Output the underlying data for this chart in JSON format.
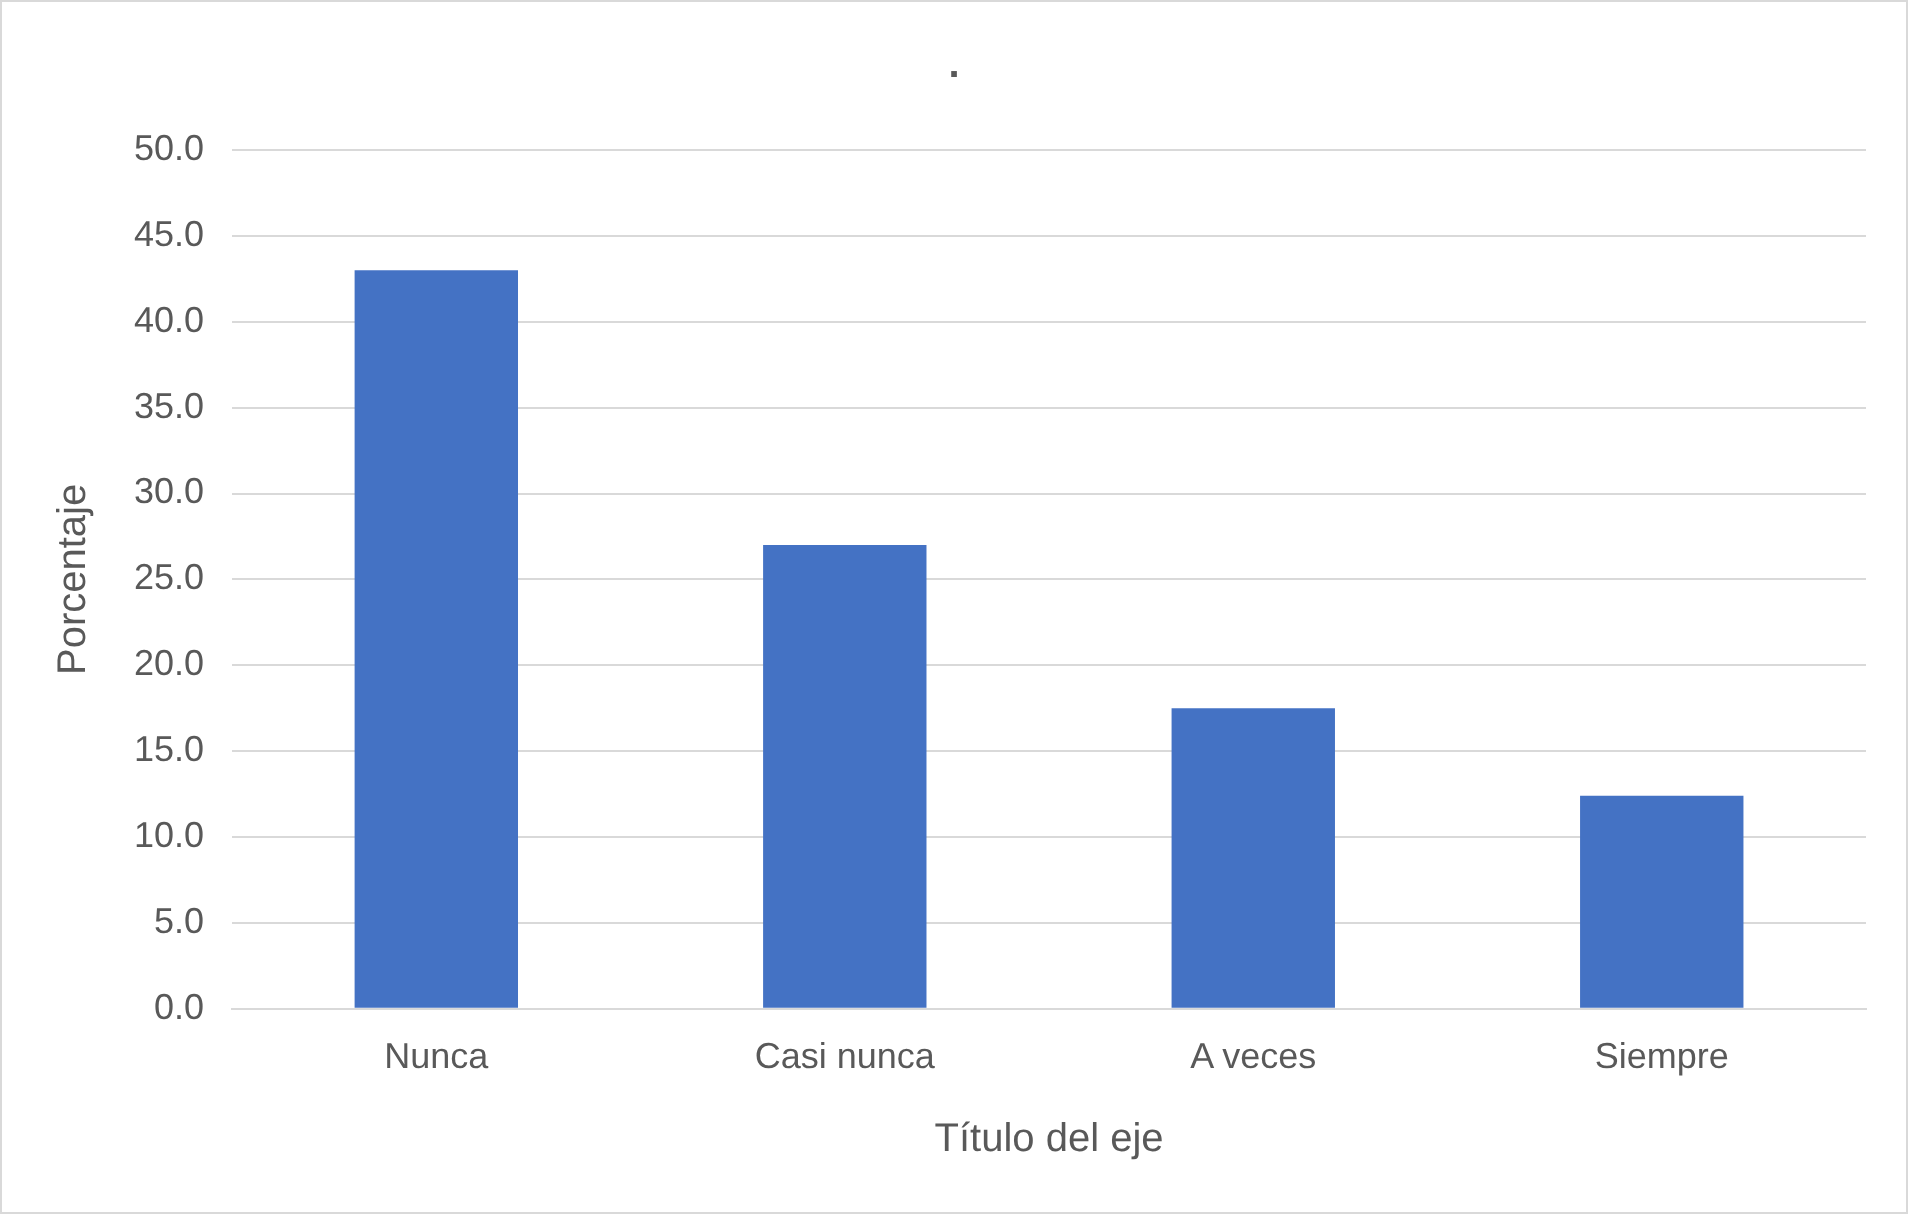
{
  "chart_data": {
    "type": "bar",
    "title": ".",
    "xlabel": "Título del eje",
    "ylabel": "Porcentaje",
    "categories": [
      "Nunca",
      "Casi nunca",
      "A veces",
      "Siempre"
    ],
    "values": [
      43.0,
      27.0,
      17.5,
      12.4
    ],
    "color": "#4472c4",
    "ylim": [
      0,
      50
    ],
    "yticks": [
      {
        "value": 0,
        "label": "0.0"
      },
      {
        "value": 5,
        "label": "5.0"
      },
      {
        "value": 10,
        "label": "10.0"
      },
      {
        "value": 15,
        "label": "15.0"
      },
      {
        "value": 20,
        "label": "20.0"
      },
      {
        "value": 25,
        "label": "25.0"
      },
      {
        "value": 30,
        "label": "30.0"
      },
      {
        "value": 35,
        "label": "35.0"
      },
      {
        "value": 40,
        "label": "40.0"
      },
      {
        "value": 45,
        "label": "45.0"
      },
      {
        "value": 50,
        "label": "50.0"
      }
    ],
    "grid": "y"
  }
}
